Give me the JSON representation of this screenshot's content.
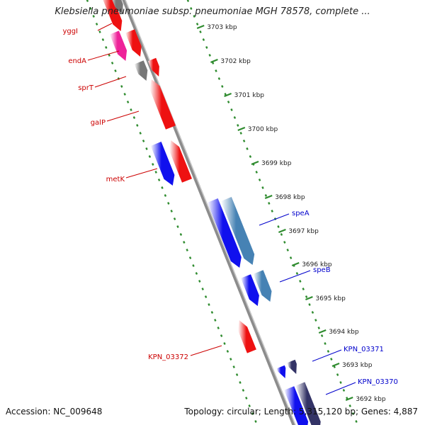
{
  "title": "Klebsiella pneumoniae subsp. pneumoniae MGH 78578, complete ...",
  "footer": {
    "accession": "Accession: NC_009648",
    "topology": "Topology: circular; Length: 5,315,120 bp; Genes: 4,887"
  },
  "colors": {
    "backbone": "#8c8c8c",
    "ticks": "#2e8b2e",
    "gene_red": "#ee1111",
    "gene_blue": "#1010ee",
    "gene_steel": "#4682b4",
    "gene_magenta": "#ee2299",
    "gene_gray": "#777777",
    "label_red": "#cc0000",
    "label_blue": "#0000cc"
  },
  "scale": {
    "unit": "kbp",
    "labels": [
      "3703 kbp",
      "3702 kbp",
      "3701 kbp",
      "3700 kbp",
      "3699 kbp",
      "3698 kbp",
      "3697 kbp",
      "3696 kbp",
      "3695 kbp",
      "3694 kbp",
      "3693 kbp",
      "3692 kbp"
    ]
  },
  "labeled_genes": [
    {
      "name": "yggI",
      "strand": "top"
    },
    {
      "name": "endA",
      "strand": "top"
    },
    {
      "name": "sprT",
      "strand": "top"
    },
    {
      "name": "galP",
      "strand": "top"
    },
    {
      "name": "metK",
      "strand": "top"
    },
    {
      "name": "KPN_03372",
      "strand": "top"
    },
    {
      "name": "speA",
      "strand": "bottom"
    },
    {
      "name": "speB",
      "strand": "bottom"
    },
    {
      "name": "KPN_03371",
      "strand": "bottom"
    },
    {
      "name": "KPN_03370",
      "strand": "bottom"
    }
  ]
}
